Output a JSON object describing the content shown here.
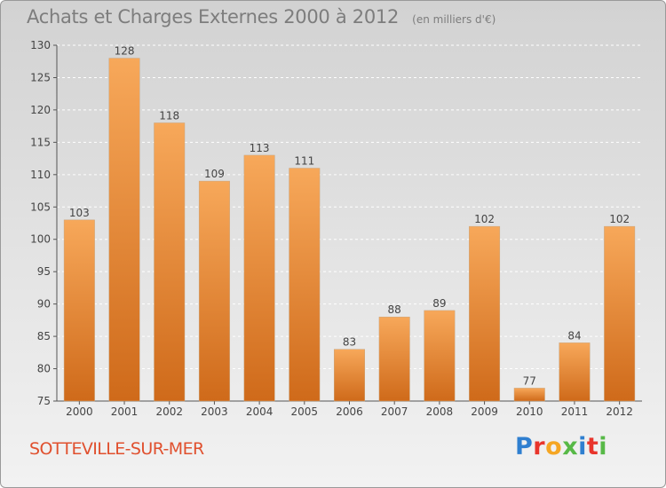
{
  "title": "Achats et Charges Externes 2000 à 2012",
  "subtitle": "(en milliers d'€)",
  "commune": "SOTTEVILLE-SUR-MER",
  "logo": {
    "letters": [
      "P",
      "r",
      "o",
      "x",
      "i",
      "t",
      "i"
    ],
    "colors": [
      "#2f7fd0",
      "#e8352c",
      "#f5a623",
      "#57b947",
      "#2f7fd0",
      "#e8352c",
      "#57b947"
    ]
  },
  "colors": {
    "bar_top": "#f7a85a",
    "bar_bottom": "#cf6a1a",
    "commune_text": "#e0502e"
  },
  "chart_data": {
    "type": "bar",
    "title": "Achats et Charges Externes 2000 à 2012",
    "subtitle": "(en milliers d'€)",
    "categories": [
      "2000",
      "2001",
      "2002",
      "2003",
      "2004",
      "2005",
      "2006",
      "2007",
      "2008",
      "2009",
      "2010",
      "2011",
      "2012"
    ],
    "values": [
      103,
      128,
      118,
      109,
      113,
      111,
      83,
      88,
      89,
      102,
      77,
      84,
      102
    ],
    "ylim": [
      75,
      130
    ],
    "yticks": [
      75,
      80,
      85,
      90,
      95,
      100,
      105,
      110,
      115,
      120,
      125,
      130
    ],
    "grid": true,
    "legend": "none"
  }
}
